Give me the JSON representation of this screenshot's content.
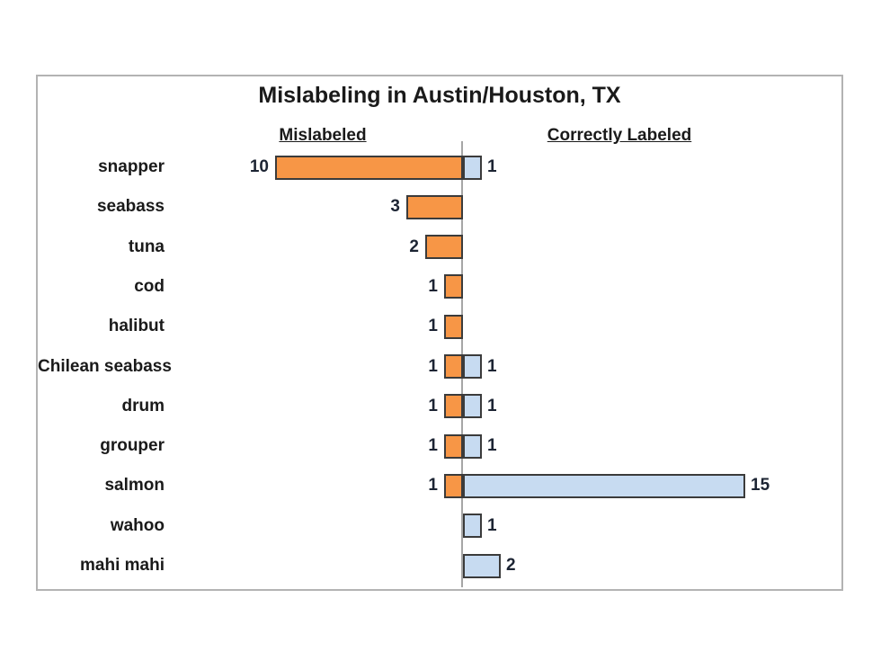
{
  "chart_data": {
    "type": "bar",
    "orientation": "diverging-horizontal",
    "title": "Mislabeling in Austin/Houston, TX",
    "left_header": "Mislabeled",
    "right_header": "Correctly Labeled",
    "categories": [
      "snapper",
      "seabass",
      "tuna",
      "cod",
      "halibut",
      "Chilean seabass",
      "drum",
      "grouper",
      "salmon",
      "wahoo",
      "mahi mahi"
    ],
    "series": [
      {
        "name": "Mislabeled",
        "side": "left",
        "values": [
          10,
          3,
          2,
          1,
          1,
          1,
          1,
          1,
          1,
          0,
          0
        ]
      },
      {
        "name": "Correctly Labeled",
        "side": "right",
        "values": [
          1,
          0,
          0,
          0,
          0,
          1,
          1,
          1,
          15,
          1,
          2
        ]
      }
    ],
    "value_labels_shown": true,
    "legend_position": "top as underlined column headers",
    "grid": false,
    "colors": {
      "mislabeled_fill": "#F79646",
      "mislabeled_border": "#3B3B3B",
      "correct_fill": "#C7DBF1",
      "correct_border": "#3B3B3B",
      "axis_line": "#A6A6A6",
      "text": "#1A1A1A",
      "frame_border": "#B3B3B3"
    }
  }
}
